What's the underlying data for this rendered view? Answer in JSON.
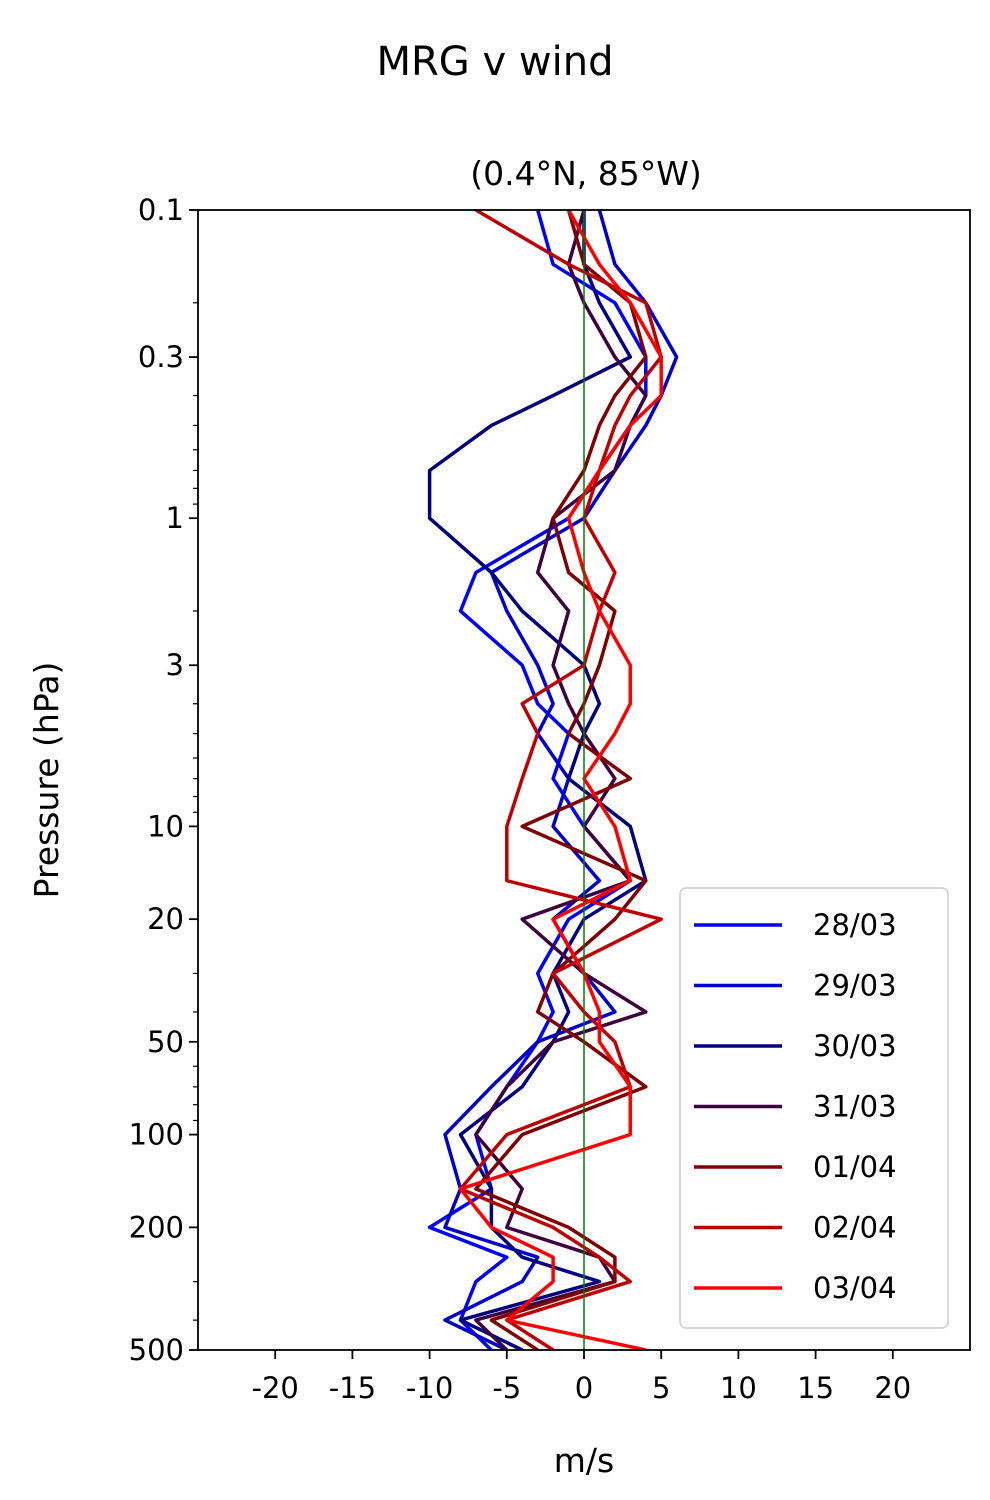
{
  "chart_data": {
    "type": "line",
    "suptitle": "MRG v wind",
    "title": "(0.4°N, 85°W)",
    "xlabel": "m/s",
    "ylabel": "Pressure (hPa)",
    "xlim": [
      -25,
      25
    ],
    "ylim": [
      500,
      0.1
    ],
    "yscale": "log",
    "y_inverted": true,
    "xticks": [
      -20,
      -15,
      -10,
      -5,
      0,
      5,
      10,
      15,
      20
    ],
    "xtick_labels": [
      "-20",
      "-15",
      "-10",
      "-5",
      "0",
      "5",
      "10",
      "15",
      "20"
    ],
    "yticks": [
      0.1,
      0.3,
      1,
      3,
      10,
      20,
      50,
      100,
      200,
      500
    ],
    "ytick_labels": [
      "0.1",
      "0.3",
      "1",
      "3",
      "10",
      "20",
      "50",
      "100",
      "200",
      "500"
    ],
    "zero_line": {
      "x": 0,
      "color": "#008000"
    },
    "legend_position": "lower-right",
    "pressure_levels": [
      0.1,
      0.15,
      0.2,
      0.3,
      0.4,
      0.5,
      0.7,
      1,
      1.5,
      2,
      3,
      4,
      5,
      7,
      10,
      15,
      20,
      30,
      40,
      50,
      70,
      100,
      150,
      200,
      250,
      300,
      400,
      500
    ],
    "series": [
      {
        "name": "28/03",
        "color": "#0000ff",
        "values": [
          -3,
          -2,
          2,
          4,
          4,
          3,
          1,
          -1,
          -7,
          -8,
          -4,
          -3,
          -1,
          -2,
          0,
          3,
          -1,
          -3,
          -2,
          -3,
          -5,
          -7,
          -6,
          -10,
          -5,
          -7,
          -8,
          -6
        ]
      },
      {
        "name": "29/03",
        "color": "#0000cc",
        "values": [
          1,
          2,
          4,
          6,
          5,
          4,
          2,
          0,
          -6,
          -5,
          -3,
          -2,
          -3,
          -1,
          -2,
          1,
          -2,
          0,
          2,
          -3,
          -6,
          -9,
          -8,
          -9,
          -3,
          -4,
          -9,
          -5
        ]
      },
      {
        "name": "30/03",
        "color": "#00007f",
        "values": [
          0,
          0,
          1,
          3,
          -2,
          -6,
          -10,
          -10,
          -6,
          -4,
          0,
          1,
          0,
          -1,
          3,
          4,
          0,
          -2,
          -1,
          -2,
          -4,
          -8,
          -6,
          -6,
          -4,
          1,
          -8,
          -4
        ]
      },
      {
        "name": "31/03",
        "color": "#3f003f",
        "values": [
          0,
          -1,
          0,
          2,
          4,
          3,
          2,
          -2,
          -3,
          -1,
          -2,
          -1,
          0,
          2,
          0,
          3,
          -4,
          0,
          4,
          -2,
          -5,
          -7,
          -4,
          -5,
          1,
          2,
          -7,
          -5
        ]
      },
      {
        "name": "01/04",
        "color": "#7f0000",
        "values": [
          -1,
          0,
          3,
          4,
          2,
          1,
          0,
          -2,
          -1,
          2,
          1,
          0,
          -1,
          3,
          -4,
          4,
          2,
          -2,
          -3,
          0,
          4,
          -4,
          -7,
          -1,
          2,
          2,
          -6,
          -3
        ]
      },
      {
        "name": "02/04",
        "color": "#bf0000",
        "values": [
          -7,
          -1,
          4,
          5,
          3,
          2,
          1,
          0,
          2,
          1,
          0,
          -4,
          -3,
          -4,
          -5,
          -5,
          5,
          -2,
          0,
          2,
          3,
          -5,
          -8,
          -2,
          1,
          3,
          -5,
          -2
        ]
      },
      {
        "name": "03/04",
        "color": "#ff0000",
        "values": [
          -1,
          1,
          3,
          5,
          5,
          3,
          1,
          -1,
          0,
          1,
          3,
          3,
          2,
          0,
          2,
          3,
          -2,
          0,
          1,
          1,
          3,
          3,
          -8,
          -6,
          -2,
          -2,
          -5,
          4
        ]
      }
    ]
  }
}
